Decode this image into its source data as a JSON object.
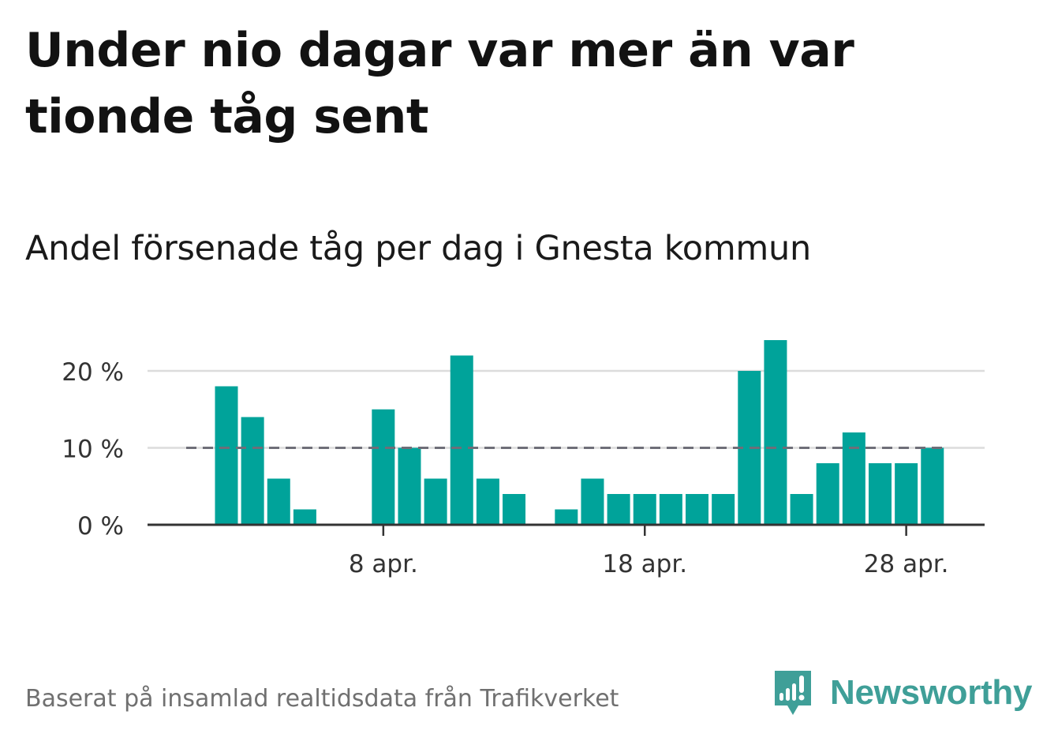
{
  "title": "Under nio dagar var mer än var tionde tåg sent",
  "subtitle": "Andel försenade tåg per dag i Gnesta kommun",
  "source": "Baserat på insamlad realtidsdata från Trafikverket",
  "brand": {
    "name": "Newsworthy",
    "logo_icon": "newsworthy-logo-icon",
    "color": "#3f9f98"
  },
  "chart_data": {
    "type": "bar",
    "x": [
      "2 apr.",
      "3 apr.",
      "4 apr.",
      "5 apr.",
      "6 apr.",
      "7 apr.",
      "8 apr.",
      "9 apr.",
      "10 apr.",
      "11 apr.",
      "12 apr.",
      "13 apr.",
      "14 apr.",
      "15 apr.",
      "16 apr.",
      "17 apr.",
      "18 apr.",
      "19 apr.",
      "20 apr.",
      "21 apr.",
      "22 apr.",
      "23 apr.",
      "24 apr.",
      "25 apr.",
      "26 apr.",
      "27 apr.",
      "28 apr.",
      "29 apr."
    ],
    "values": [
      18,
      14,
      6,
      2,
      0,
      0,
      15,
      10,
      6,
      22,
      6,
      4,
      0,
      2,
      6,
      4,
      4,
      4,
      4,
      4,
      20,
      24,
      4,
      8,
      12,
      8,
      8,
      10
    ],
    "xticks": [
      "8 apr.",
      "18 apr.",
      "28 apr."
    ],
    "yticks": [
      "0 %",
      "10 %",
      "20 %"
    ],
    "ylim": [
      0,
      24
    ],
    "reference_line": 10,
    "bar_color": "#00a39a",
    "reference_color": "#6e6e78",
    "grid": true
  }
}
